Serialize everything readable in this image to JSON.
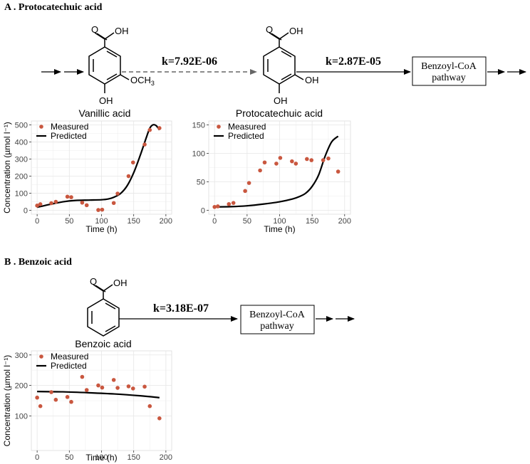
{
  "panel_a": {
    "title": "A . Protocatechuic acid",
    "molecule1": {
      "cooh": "OH",
      "oh": "OH",
      "substituent": "OCH",
      "substituent_sub": "3",
      "name": "Vanillic acid"
    },
    "molecule2": {
      "cooh": "OH",
      "oh_para": "OH",
      "oh_meta": "OH",
      "name": "Protocatechuic acid"
    },
    "rate1": "k=7.92E-06",
    "rate2": "k=2.87E-05",
    "pathway_box": [
      "Benzoyl-CoA",
      "pathway"
    ]
  },
  "panel_b": {
    "title": "B . Benzoic acid",
    "molecule": {
      "cooh": "OH",
      "name": "Benzoic acid"
    },
    "rate": "k=3.18E-07",
    "pathway_box": [
      "Benzoyl-CoA",
      "pathway"
    ]
  },
  "colors": {
    "measured": "#c9573f",
    "predicted": "#000000",
    "grid": "#e6e6e6"
  },
  "chart_data": [
    {
      "type": "scatter",
      "xlabel": "Time (h)",
      "ylabel": "Concentration (µmol l⁻¹)",
      "xlim": [
        0,
        200
      ],
      "ylim": [
        0,
        500
      ],
      "xticks": [
        0,
        50,
        100,
        150,
        200
      ],
      "yticks": [
        0,
        100,
        200,
        300,
        400,
        500
      ],
      "legend": "top-left",
      "series": [
        {
          "name": "Measured",
          "kind": "points",
          "x": [
            0,
            5,
            22,
            29,
            47,
            53,
            70,
            77,
            95,
            101,
            119,
            125,
            142,
            149,
            167,
            175,
            190
          ],
          "y": [
            28,
            36,
            42,
            50,
            80,
            77,
            45,
            30,
            2,
            4,
            43,
            98,
            200,
            280,
            385,
            470,
            481
          ]
        },
        {
          "name": "Predicted",
          "kind": "line",
          "x": [
            0,
            20,
            40,
            60,
            80,
            100,
            110,
            120,
            130,
            140,
            150,
            160,
            170,
            175,
            180,
            185,
            190
          ],
          "y": [
            18,
            35,
            50,
            58,
            60,
            62,
            66,
            78,
            100,
            145,
            220,
            320,
            430,
            480,
            500,
            495,
            470
          ]
        }
      ]
    },
    {
      "type": "scatter",
      "xlabel": "Time (h)",
      "ylabel": "",
      "xlim": [
        0,
        200
      ],
      "ylim": [
        0,
        150
      ],
      "xticks": [
        0,
        50,
        100,
        150,
        200
      ],
      "yticks": [
        0,
        50,
        100,
        150
      ],
      "legend": "top-left",
      "series": [
        {
          "name": "Measured",
          "kind": "points",
          "x": [
            0,
            5,
            22,
            29,
            47,
            53,
            70,
            77,
            95,
            101,
            119,
            125,
            142,
            149,
            167,
            175,
            190
          ],
          "y": [
            6,
            7,
            11,
            13,
            34,
            48,
            70,
            84,
            82,
            92,
            86,
            82,
            90,
            88,
            88,
            91,
            68
          ]
        },
        {
          "name": "Predicted",
          "kind": "line",
          "x": [
            0,
            25,
            50,
            75,
            100,
            120,
            130,
            140,
            150,
            160,
            170,
            180,
            190
          ],
          "y": [
            6,
            6.5,
            8,
            11,
            15,
            20,
            24,
            30,
            42,
            62,
            95,
            120,
            130
          ]
        }
      ]
    },
    {
      "type": "scatter",
      "xlabel": "Time (h)",
      "ylabel": "Concentration (µmol l⁻¹)",
      "xlim": [
        0,
        200
      ],
      "ylim": [
        0,
        300
      ],
      "xticks": [
        0,
        50,
        100,
        150,
        200
      ],
      "yticks": [
        100,
        200,
        300
      ],
      "legend": "top-left",
      "series": [
        {
          "name": "Measured",
          "kind": "points",
          "x": [
            0,
            5,
            22,
            29,
            47,
            53,
            70,
            77,
            95,
            101,
            119,
            125,
            142,
            149,
            167,
            175,
            190
          ],
          "y": [
            160,
            132,
            178,
            153,
            162,
            146,
            228,
            185,
            200,
            193,
            218,
            192,
            197,
            190,
            196,
            132,
            92
          ]
        },
        {
          "name": "Predicted",
          "kind": "line",
          "x": [
            0,
            40,
            80,
            120,
            160,
            190
          ],
          "y": [
            180,
            179,
            176,
            172,
            166,
            160
          ]
        }
      ]
    }
  ]
}
